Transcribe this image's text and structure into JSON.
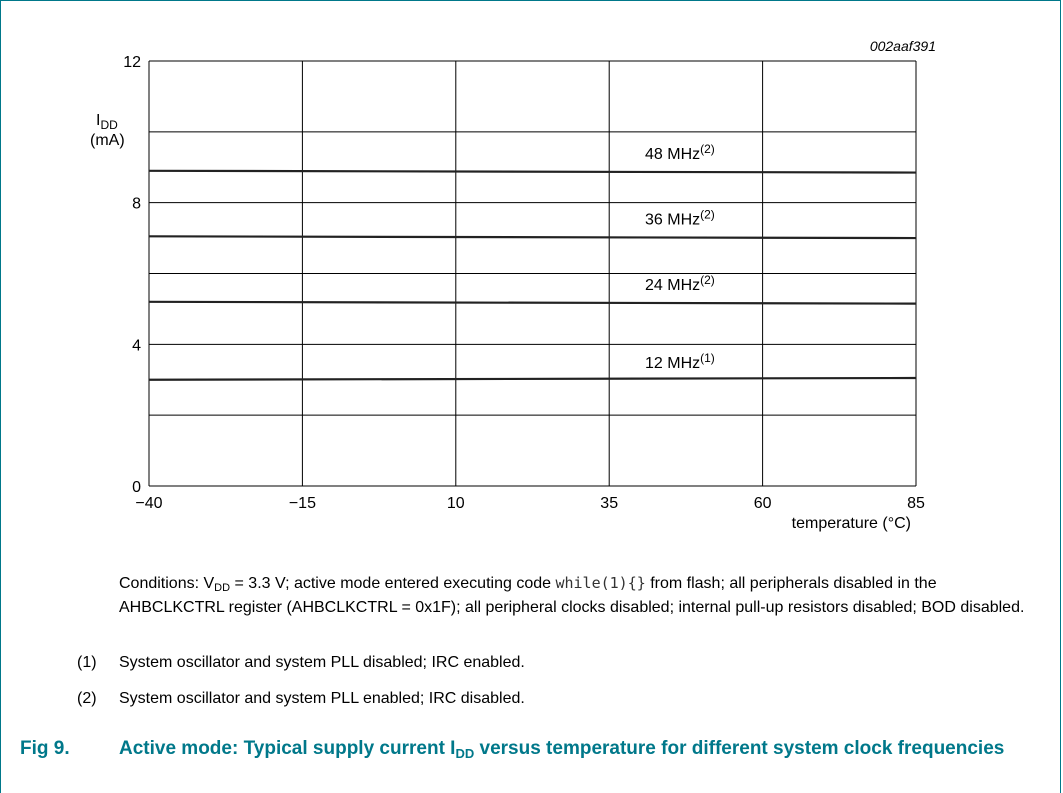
{
  "chart_data": {
    "type": "line",
    "id_label": "002aaf391",
    "y_axis": {
      "label_main": "I",
      "label_sub": "DD",
      "unit": "(mA)",
      "min": 0,
      "max": 12,
      "ticks": [
        0,
        4,
        8,
        12
      ]
    },
    "x_axis": {
      "label": "temperature (°C)",
      "min": -40,
      "max": 85,
      "tick_labels": [
        "−40",
        "−15",
        "10",
        "35",
        "60",
        "85"
      ],
      "ticks": [
        -40,
        -15,
        10,
        35,
        60,
        85
      ]
    },
    "grid": true,
    "x": [
      -40,
      85
    ],
    "series": [
      {
        "name": "48 MHz",
        "note": "(2)",
        "values": [
          8.9,
          8.85
        ],
        "color": "#222222"
      },
      {
        "name": "36 MHz",
        "note": "(2)",
        "values": [
          7.05,
          7.0
        ],
        "color": "#222222"
      },
      {
        "name": "24 MHz",
        "note": "(2)",
        "values": [
          5.2,
          5.15
        ],
        "color": "#222222"
      },
      {
        "name": "12 MHz",
        "note": "(1)",
        "values": [
          3.0,
          3.05
        ],
        "color": "#222222"
      }
    ]
  },
  "conditions": {
    "prefix": "Conditions: V",
    "vdd_sub": "DD",
    "part1": " = 3.3 V; active mode entered executing code ",
    "code": "while(1){}",
    "part2": " from flash; all peripherals disabled in the AHBCLKCTRL register (AHBCLKCTRL = 0x1F); all peripheral clocks disabled; internal pull-up resistors disabled; BOD disabled."
  },
  "notes": [
    {
      "num": "(1)",
      "text": "System oscillator and system PLL disabled; IRC enabled."
    },
    {
      "num": "(2)",
      "text": "System oscillator and system PLL enabled; IRC disabled."
    }
  ],
  "caption": {
    "fig": "Fig 9.",
    "text_before": "Active mode: Typical supply current I",
    "text_sub": "DD",
    "text_after": " versus temperature for different system clock frequencies"
  },
  "colors": {
    "accent": "#00788a",
    "grid": "#000000"
  }
}
